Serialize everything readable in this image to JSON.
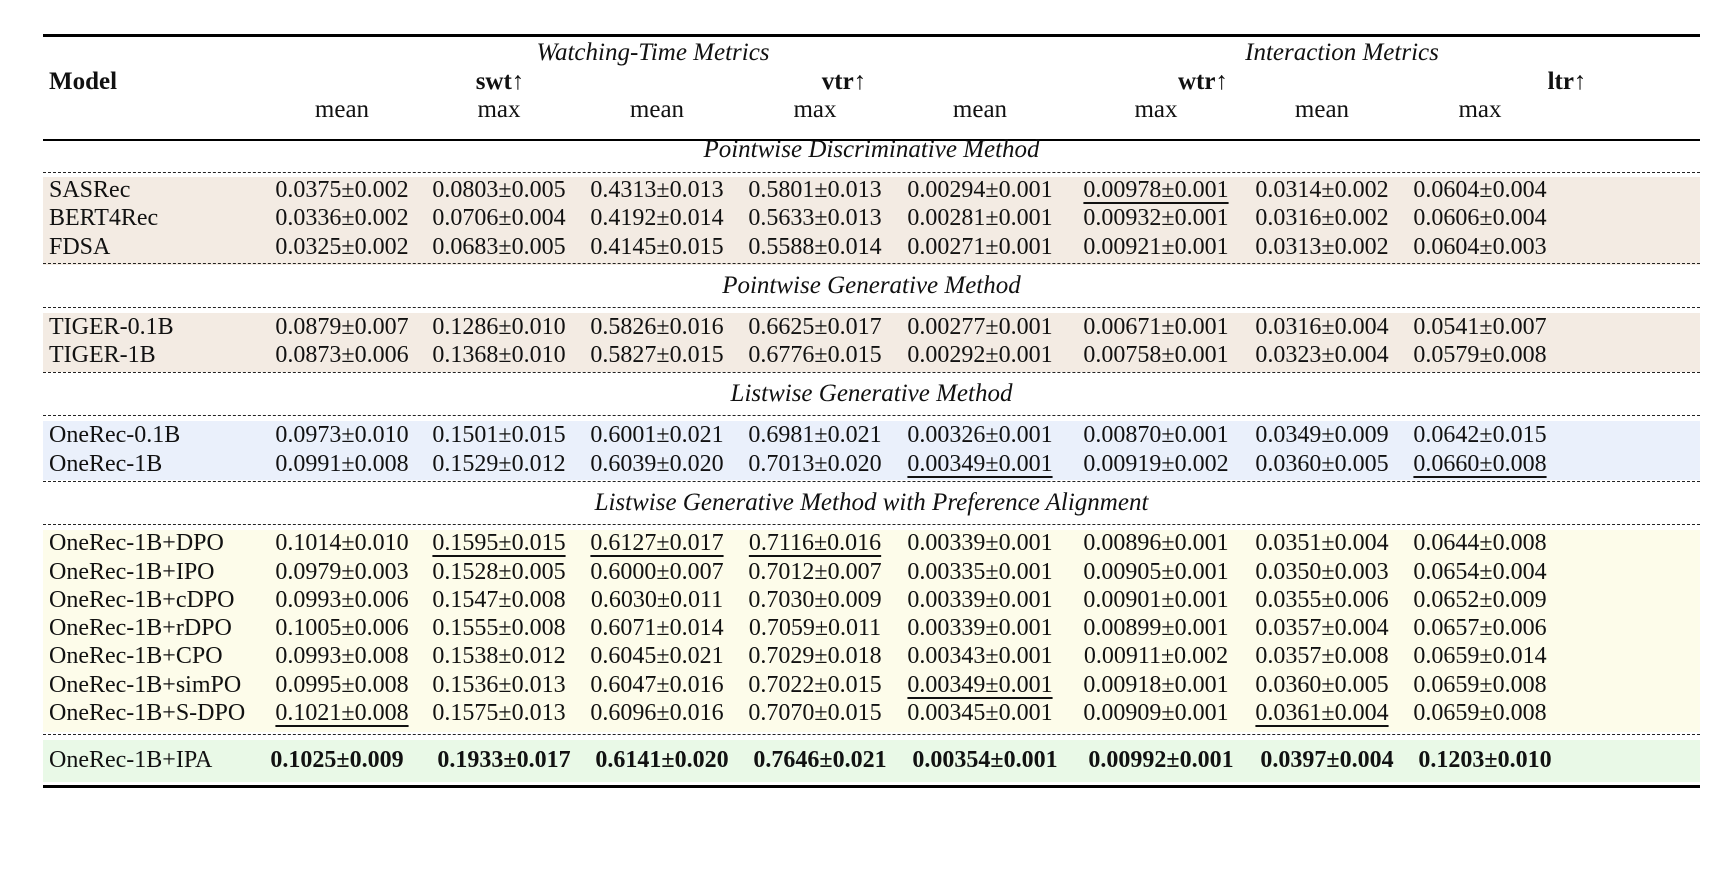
{
  "header": {
    "model_label": "Model",
    "group_watching": "Watching-Time Metrics",
    "group_interaction": "Interaction Metrics",
    "metrics": [
      "swt↑",
      "vtr↑",
      "wtr↑",
      "ltr↑"
    ],
    "sub": [
      "mean",
      "max",
      "mean",
      "max",
      "mean",
      "max",
      "mean",
      "max"
    ]
  },
  "colors": {
    "pointwise_band": "#f3ebe3",
    "listwise_band": "#eaf0fb",
    "preference_band": "#fdfcea",
    "ours_band": "#e9f9e7"
  },
  "sections": [
    {
      "title": "Pointwise Discriminative Method",
      "rows": [
        {
          "model": "SASRec",
          "cells": [
            [
              "0.0375±0.002",
              ""
            ],
            [
              "0.0803±0.005",
              ""
            ],
            [
              "0.4313±0.013",
              ""
            ],
            [
              "0.5801±0.013",
              ""
            ],
            [
              "0.00294±0.001",
              ""
            ],
            [
              "0.00978±0.001",
              "u"
            ],
            [
              "0.0314±0.002",
              ""
            ],
            [
              "0.0604±0.004",
              ""
            ]
          ]
        },
        {
          "model": "BERT4Rec",
          "cells": [
            [
              "0.0336±0.002",
              ""
            ],
            [
              "0.0706±0.004",
              ""
            ],
            [
              "0.4192±0.014",
              ""
            ],
            [
              "0.5633±0.013",
              ""
            ],
            [
              "0.00281±0.001",
              ""
            ],
            [
              "0.00932±0.001",
              ""
            ],
            [
              "0.0316±0.002",
              ""
            ],
            [
              "0.0606±0.004",
              ""
            ]
          ]
        },
        {
          "model": "FDSA",
          "cells": [
            [
              "0.0325±0.002",
              ""
            ],
            [
              "0.0683±0.005",
              ""
            ],
            [
              "0.4145±0.015",
              ""
            ],
            [
              "0.5588±0.014",
              ""
            ],
            [
              "0.00271±0.001",
              ""
            ],
            [
              "0.00921±0.001",
              ""
            ],
            [
              "0.0313±0.002",
              ""
            ],
            [
              "0.0604±0.003",
              ""
            ]
          ]
        }
      ]
    },
    {
      "title": "Pointwise Generative Method",
      "rows": [
        {
          "model": "TIGER-0.1B",
          "cells": [
            [
              "0.0879±0.007",
              ""
            ],
            [
              "0.1286±0.010",
              ""
            ],
            [
              "0.5826±0.016",
              ""
            ],
            [
              "0.6625±0.017",
              ""
            ],
            [
              "0.00277±0.001",
              ""
            ],
            [
              "0.00671±0.001",
              ""
            ],
            [
              "0.0316±0.004",
              ""
            ],
            [
              "0.0541±0.007",
              ""
            ]
          ]
        },
        {
          "model": "TIGER-1B",
          "cells": [
            [
              "0.0873±0.006",
              ""
            ],
            [
              "0.1368±0.010",
              ""
            ],
            [
              "0.5827±0.015",
              ""
            ],
            [
              "0.6776±0.015",
              ""
            ],
            [
              "0.00292±0.001",
              ""
            ],
            [
              "0.00758±0.001",
              ""
            ],
            [
              "0.0323±0.004",
              ""
            ],
            [
              "0.0579±0.008",
              ""
            ]
          ]
        }
      ]
    },
    {
      "title": "Listwise Generative Method",
      "rows": [
        {
          "model": "OneRec-0.1B",
          "cells": [
            [
              "0.0973±0.010",
              ""
            ],
            [
              "0.1501±0.015",
              ""
            ],
            [
              "0.6001±0.021",
              ""
            ],
            [
              "0.6981±0.021",
              ""
            ],
            [
              "0.00326±0.001",
              ""
            ],
            [
              "0.00870±0.001",
              ""
            ],
            [
              "0.0349±0.009",
              ""
            ],
            [
              "0.0642±0.015",
              ""
            ]
          ]
        },
        {
          "model": "OneRec-1B",
          "cells": [
            [
              "0.0991±0.008",
              ""
            ],
            [
              "0.1529±0.012",
              ""
            ],
            [
              "0.6039±0.020",
              ""
            ],
            [
              "0.7013±0.020",
              ""
            ],
            [
              "0.00349±0.001",
              "u"
            ],
            [
              "0.00919±0.002",
              ""
            ],
            [
              "0.0360±0.005",
              ""
            ],
            [
              "0.0660±0.008",
              "u"
            ]
          ]
        }
      ]
    },
    {
      "title": "Listwise Generative Method with Preference Alignment",
      "rows": [
        {
          "model": "OneRec-1B+DPO",
          "cells": [
            [
              "0.1014±0.010",
              ""
            ],
            [
              "0.1595±0.015",
              "u"
            ],
            [
              "0.6127±0.017",
              "u"
            ],
            [
              "0.7116±0.016",
              "u"
            ],
            [
              "0.00339±0.001",
              ""
            ],
            [
              "0.00896±0.001",
              ""
            ],
            [
              "0.0351±0.004",
              ""
            ],
            [
              "0.0644±0.008",
              ""
            ]
          ]
        },
        {
          "model": "OneRec-1B+IPO",
          "cells": [
            [
              "0.0979±0.003",
              ""
            ],
            [
              "0.1528±0.005",
              ""
            ],
            [
              "0.6000±0.007",
              ""
            ],
            [
              "0.7012±0.007",
              ""
            ],
            [
              "0.00335±0.001",
              ""
            ],
            [
              "0.00905±0.001",
              ""
            ],
            [
              "0.0350±0.003",
              ""
            ],
            [
              "0.0654±0.004",
              ""
            ]
          ]
        },
        {
          "model": "OneRec-1B+cDPO",
          "cells": [
            [
              "0.0993±0.006",
              ""
            ],
            [
              "0.1547±0.008",
              ""
            ],
            [
              "0.6030±0.011",
              ""
            ],
            [
              "0.7030±0.009",
              ""
            ],
            [
              "0.00339±0.001",
              ""
            ],
            [
              "0.00901±0.001",
              ""
            ],
            [
              "0.0355±0.006",
              ""
            ],
            [
              "0.0652±0.009",
              ""
            ]
          ]
        },
        {
          "model": "OneRec-1B+rDPO",
          "cells": [
            [
              "0.1005±0.006",
              ""
            ],
            [
              "0.1555±0.008",
              ""
            ],
            [
              "0.6071±0.014",
              ""
            ],
            [
              "0.7059±0.011",
              ""
            ],
            [
              "0.00339±0.001",
              ""
            ],
            [
              "0.00899±0.001",
              ""
            ],
            [
              "0.0357±0.004",
              ""
            ],
            [
              "0.0657±0.006",
              ""
            ]
          ]
        },
        {
          "model": "OneRec-1B+CPO",
          "cells": [
            [
              "0.0993±0.008",
              ""
            ],
            [
              "0.1538±0.012",
              ""
            ],
            [
              "0.6045±0.021",
              ""
            ],
            [
              "0.7029±0.018",
              ""
            ],
            [
              "0.00343±0.001",
              ""
            ],
            [
              "0.00911±0.002",
              ""
            ],
            [
              "0.0357±0.008",
              ""
            ],
            [
              "0.0659±0.014",
              ""
            ]
          ]
        },
        {
          "model": "OneRec-1B+simPO",
          "cells": [
            [
              "0.0995±0.008",
              ""
            ],
            [
              "0.1536±0.013",
              ""
            ],
            [
              "0.6047±0.016",
              ""
            ],
            [
              "0.7022±0.015",
              ""
            ],
            [
              "0.00349±0.001",
              "u"
            ],
            [
              "0.00918±0.001",
              ""
            ],
            [
              "0.0360±0.005",
              ""
            ],
            [
              "0.0659±0.008",
              ""
            ]
          ]
        },
        {
          "model": "OneRec-1B+S-DPO",
          "cells": [
            [
              "0.1021±0.008",
              "u"
            ],
            [
              "0.1575±0.013",
              ""
            ],
            [
              "0.6096±0.016",
              ""
            ],
            [
              "0.7070±0.015",
              ""
            ],
            [
              "0.00345±0.001",
              ""
            ],
            [
              "0.00909±0.001",
              ""
            ],
            [
              "0.0361±0.004",
              "u"
            ],
            [
              "0.0659±0.008",
              ""
            ]
          ]
        }
      ]
    }
  ],
  "final": {
    "model": "OneRec-1B+IPA",
    "cells": [
      "0.1025±0.009",
      "0.1933±0.017",
      "0.6141±0.020",
      "0.7646±0.021",
      "0.00354±0.001",
      "0.00992±0.001",
      "0.0397±0.004",
      "0.1203±0.010"
    ]
  }
}
